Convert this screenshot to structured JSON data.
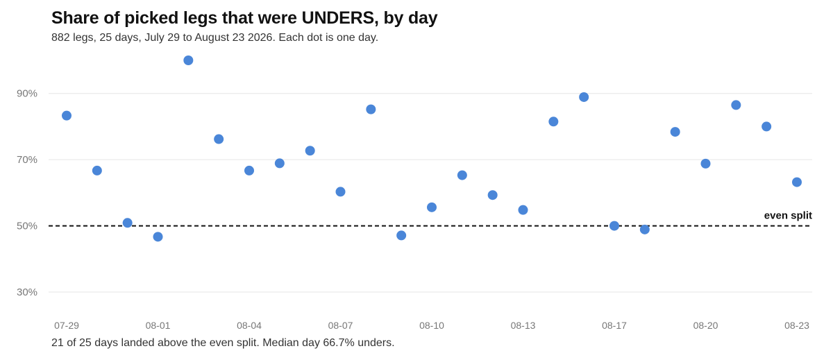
{
  "title": "Share of picked legs that were UNDERS, by day",
  "subtitle": "882 legs, 25 days, July 29 to August 23 2026. Each dot is one day.",
  "footer": "21 of 25 days landed above the even split. Median day 66.7% unders.",
  "colors": {
    "dot": "#4a86d8",
    "grid": "#e6e6e6",
    "reference": "#111111"
  },
  "chart_data": {
    "type": "scatter",
    "title": "Share of picked legs that were UNDERS, by day",
    "xlabel": "",
    "ylabel": "",
    "x": [
      "07-29",
      "07-30",
      "07-31",
      "08-01",
      "08-02",
      "08-03",
      "08-04",
      "08-05",
      "08-06",
      "08-07",
      "08-08",
      "08-09",
      "08-10",
      "08-11",
      "08-12",
      "08-13",
      "08-14",
      "08-15",
      "08-17",
      "08-18",
      "08-19",
      "08-20",
      "08-21",
      "08-22",
      "08-23"
    ],
    "values": [
      83.3,
      66.7,
      50.9,
      46.7,
      100.0,
      76.2,
      66.7,
      68.9,
      72.7,
      60.3,
      85.2,
      47.1,
      55.6,
      65.3,
      59.3,
      54.8,
      81.5,
      88.9,
      50.0,
      48.9,
      78.4,
      68.8,
      86.5,
      80.0,
      63.2
    ],
    "x_tick_labels": [
      "07-29",
      "08-01",
      "08-04",
      "08-07",
      "08-10",
      "08-13",
      "08-17",
      "08-20",
      "08-23"
    ],
    "y_ticks": [
      30,
      50,
      70,
      90
    ],
    "y_tick_labels": [
      "30%",
      "50%",
      "70%",
      "90%"
    ],
    "ylim": [
      24,
      104
    ],
    "grid": true,
    "reference_line": {
      "value": 50,
      "label": "even split"
    }
  }
}
